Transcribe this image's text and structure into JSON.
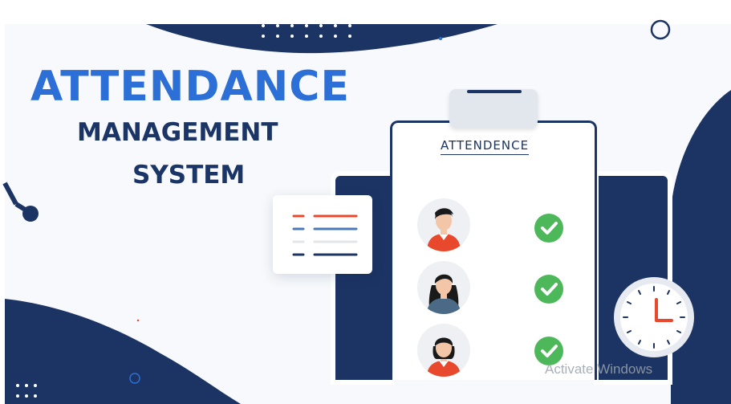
{
  "banner": {
    "headline": "ATTENDANCE",
    "subtitle_line1": "MANAGEMENT",
    "subtitle_line2": "SYSTEM"
  },
  "clipboard": {
    "title": "ATTENDENCE",
    "entries": [
      {
        "avatar": "male-avatar",
        "status": "present",
        "status_icon": "check-icon"
      },
      {
        "avatar": "female-avatar",
        "status": "present",
        "status_icon": "check-icon"
      },
      {
        "avatar": "female-avatar-short-hair",
        "status": "present",
        "status_icon": "check-icon"
      }
    ]
  },
  "watermark": {
    "text": "Activate Windows"
  },
  "colors": {
    "headline_blue": "#2c6fd6",
    "navy": "#1c3463",
    "accent_red": "#e8482c",
    "check_green": "#4cb85a",
    "background": "#f7f9fc"
  }
}
